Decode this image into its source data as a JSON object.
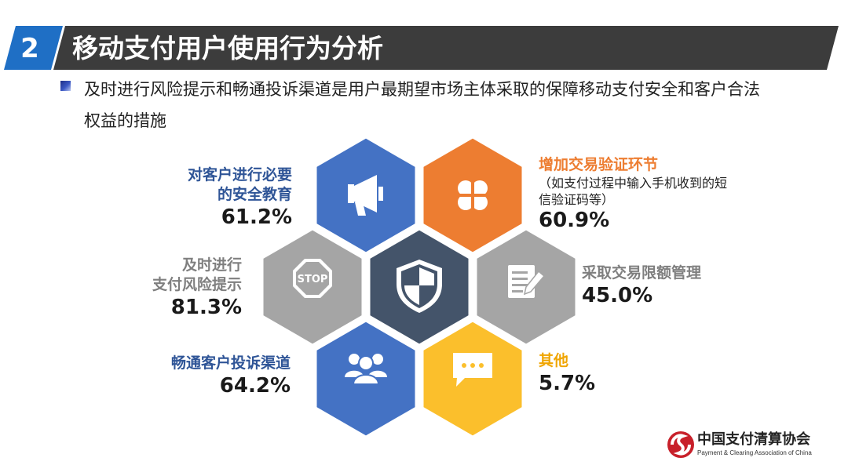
{
  "header": {
    "section_number": "2",
    "title": "移动支付用户使用行为分析"
  },
  "bullet": {
    "line1": "及时进行风险提示和畅通投诉渠道是用户最期望市场主体采取的保障移动支付安全和客户合法",
    "line2": "权益的措施"
  },
  "colors": {
    "blue": "#4472c4",
    "orange": "#ed7d31",
    "gray": "#a5a5a5",
    "yellow": "#fbbf2c",
    "navy": "#44546a",
    "title_bar": "#3c3c3c",
    "title_accent": "#1f6fc5"
  },
  "chart_data": {
    "type": "table",
    "categories": [
      "对客户进行必要的安全教育",
      "增加交易验证环节",
      "及时进行支付风险提示",
      "采取交易限额管理",
      "畅通客户投诉渠道",
      "其他"
    ],
    "values": [
      61.2,
      60.9,
      81.3,
      45.0,
      64.2,
      5.7
    ],
    "unit": "%",
    "items": [
      {
        "label_lines": [
          "对客户进行必要",
          "的安全教育"
        ],
        "value": "61.2%",
        "color": "#4472c4",
        "icon": "megaphone-icon"
      },
      {
        "label_lines": [
          "增加交易验证环节"
        ],
        "note_lines": [
          "（如支付过程中输入手机收到的短",
          "信验证码等）"
        ],
        "value": "60.9%",
        "color": "#ed7d31",
        "icon": "clover-icon"
      },
      {
        "label_lines": [
          "及时进行",
          "支付风险提示"
        ],
        "value": "81.3%",
        "color": "#a5a5a5",
        "icon": "stop-sign-icon",
        "icon_text": "STOP"
      },
      {
        "label_lines": [
          "采取交易限额管理"
        ],
        "value": "45.0%",
        "color": "#a5a5a5",
        "icon": "document-edit-icon"
      },
      {
        "label_lines": [
          "畅通客户投诉渠道"
        ],
        "value": "64.2%",
        "color": "#4472c4",
        "icon": "users-icon"
      },
      {
        "label_lines": [
          "其他"
        ],
        "value": "5.7%",
        "color": "#fbbf2c",
        "icon": "chat-bubble-icon"
      }
    ],
    "center_icon": "shield-icon"
  },
  "footer": {
    "logo_cn": "中国支付清算协会",
    "logo_en": "Payment & Clearing Association of China"
  }
}
